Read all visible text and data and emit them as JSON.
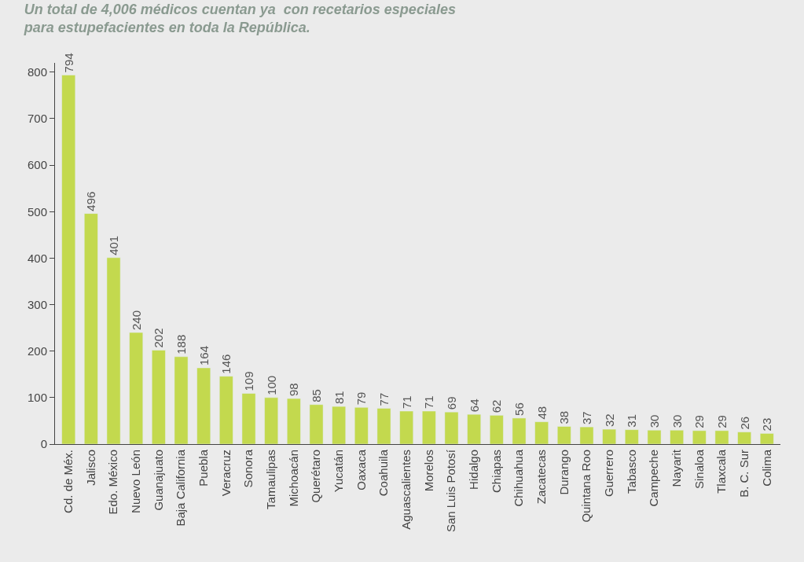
{
  "chart_data": {
    "type": "bar",
    "title": "Un total de 4,006 médicos cuentan ya  con recetarios especiales para estupefacientes en toda la República.",
    "categories": [
      "Cd. de Méx.",
      "Jalisco",
      "Edo. México",
      "Nuevo León",
      "Guanajuato",
      "Baja California",
      "Puebla",
      "Veracruz",
      "Sonora",
      "Tamaulipas",
      "Michoacán",
      "Querétaro",
      "Yucatán",
      "Oaxaca",
      "Coahuila",
      "Aguascalientes",
      "Morelos",
      "San Luis Potosí",
      "Hidalgo",
      "Chiapas",
      "Chihuahua",
      "Zacatecas",
      "Durango",
      "Quintana Roo",
      "Guerrero",
      "Tabasco",
      "Campeche",
      "Nayarit",
      "Sinaloa",
      "Tlaxcala",
      "B. C. Sur",
      "Colima"
    ],
    "values": [
      794,
      496,
      401,
      240,
      202,
      188,
      164,
      146,
      109,
      100,
      98,
      85,
      81,
      79,
      77,
      71,
      71,
      69,
      64,
      62,
      56,
      48,
      38,
      37,
      32,
      31,
      30,
      30,
      29,
      29,
      26,
      23
    ],
    "color": "#c3d94e",
    "data_labels": true,
    "ylim": [
      0,
      820
    ],
    "yticks": [
      0,
      100,
      200,
      300,
      400,
      500,
      600,
      700,
      800
    ],
    "grid": false
  }
}
